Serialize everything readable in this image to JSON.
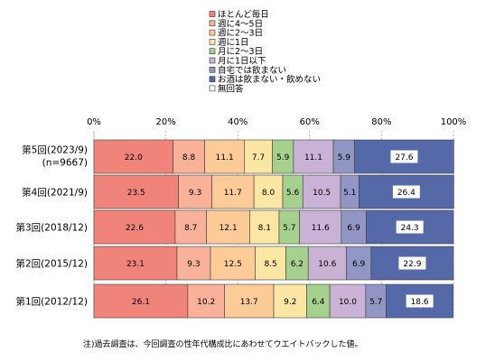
{
  "chart_data": {
    "type": "bar",
    "orientation": "horizontal",
    "stacked": true,
    "percent": true,
    "xlim": [
      0,
      100
    ],
    "x_ticks": [
      "0%",
      "20%",
      "40%",
      "60%",
      "80%",
      "100%"
    ],
    "grid": true,
    "legend_position": "top-center",
    "categories": [
      [
        "第5回(2023/9)",
        "(n=9667)"
      ],
      [
        "第4回(2021/9)"
      ],
      [
        "第3回(2018/12)"
      ],
      [
        "第2回(2015/12)"
      ],
      [
        "第1回(2012/12)"
      ]
    ],
    "series": [
      {
        "name": "ほとんど毎日",
        "color": "#F0837A",
        "values": [
          22.0,
          23.5,
          22.6,
          23.1,
          26.1
        ]
      },
      {
        "name": "週に4～5日",
        "color": "#F9B199",
        "values": [
          8.8,
          9.3,
          8.7,
          9.3,
          10.2
        ]
      },
      {
        "name": "週に2～3日",
        "color": "#FCCB98",
        "values": [
          11.1,
          11.7,
          12.1,
          12.5,
          13.7
        ]
      },
      {
        "name": "週に1日",
        "color": "#FCE6A4",
        "values": [
          7.7,
          8.0,
          8.1,
          8.5,
          9.2
        ]
      },
      {
        "name": "月に2～3日",
        "color": "#A6D08D",
        "values": [
          5.9,
          5.6,
          5.7,
          6.2,
          6.4
        ]
      },
      {
        "name": "月に1日以下",
        "color": "#C9B2D5",
        "values": [
          11.1,
          10.5,
          11.6,
          10.6,
          10.0
        ]
      },
      {
        "name": "自宅では飲まない",
        "color": "#9196C4",
        "values": [
          5.9,
          5.1,
          6.9,
          6.9,
          5.7
        ]
      },
      {
        "name": "お酒は飲まない・飲めない",
        "color": "#5568A8",
        "values": [
          27.6,
          26.4,
          24.3,
          22.9,
          18.6
        ]
      },
      {
        "name": "無回答",
        "color": "#FFFFFF",
        "values": [
          0,
          0,
          0,
          0,
          0
        ]
      }
    ],
    "labels": [
      [
        "22.0",
        "8.8",
        "11.1",
        "7.7",
        "5.9",
        "11.1",
        "5.9",
        "27.6"
      ],
      [
        "23.5",
        "9.3",
        "11.7",
        "8.0",
        "5.6",
        "10.5",
        "5.1",
        "26.4"
      ],
      [
        "22.6",
        "8.7",
        "12.1",
        "8.1",
        "5.7",
        "11.6",
        "6.9",
        "24.3"
      ],
      [
        "23.1",
        "9.3",
        "12.5",
        "8.5",
        "6.2",
        "10.6",
        "6.9",
        "22.9"
      ],
      [
        "26.1",
        "10.2",
        "13.7",
        "9.2",
        "6.4",
        "10.0",
        "5.7",
        "18.6"
      ]
    ]
  },
  "note": "注)過去調査は、今回調査の性年代構成比にあわせてウエイトバックした値。"
}
